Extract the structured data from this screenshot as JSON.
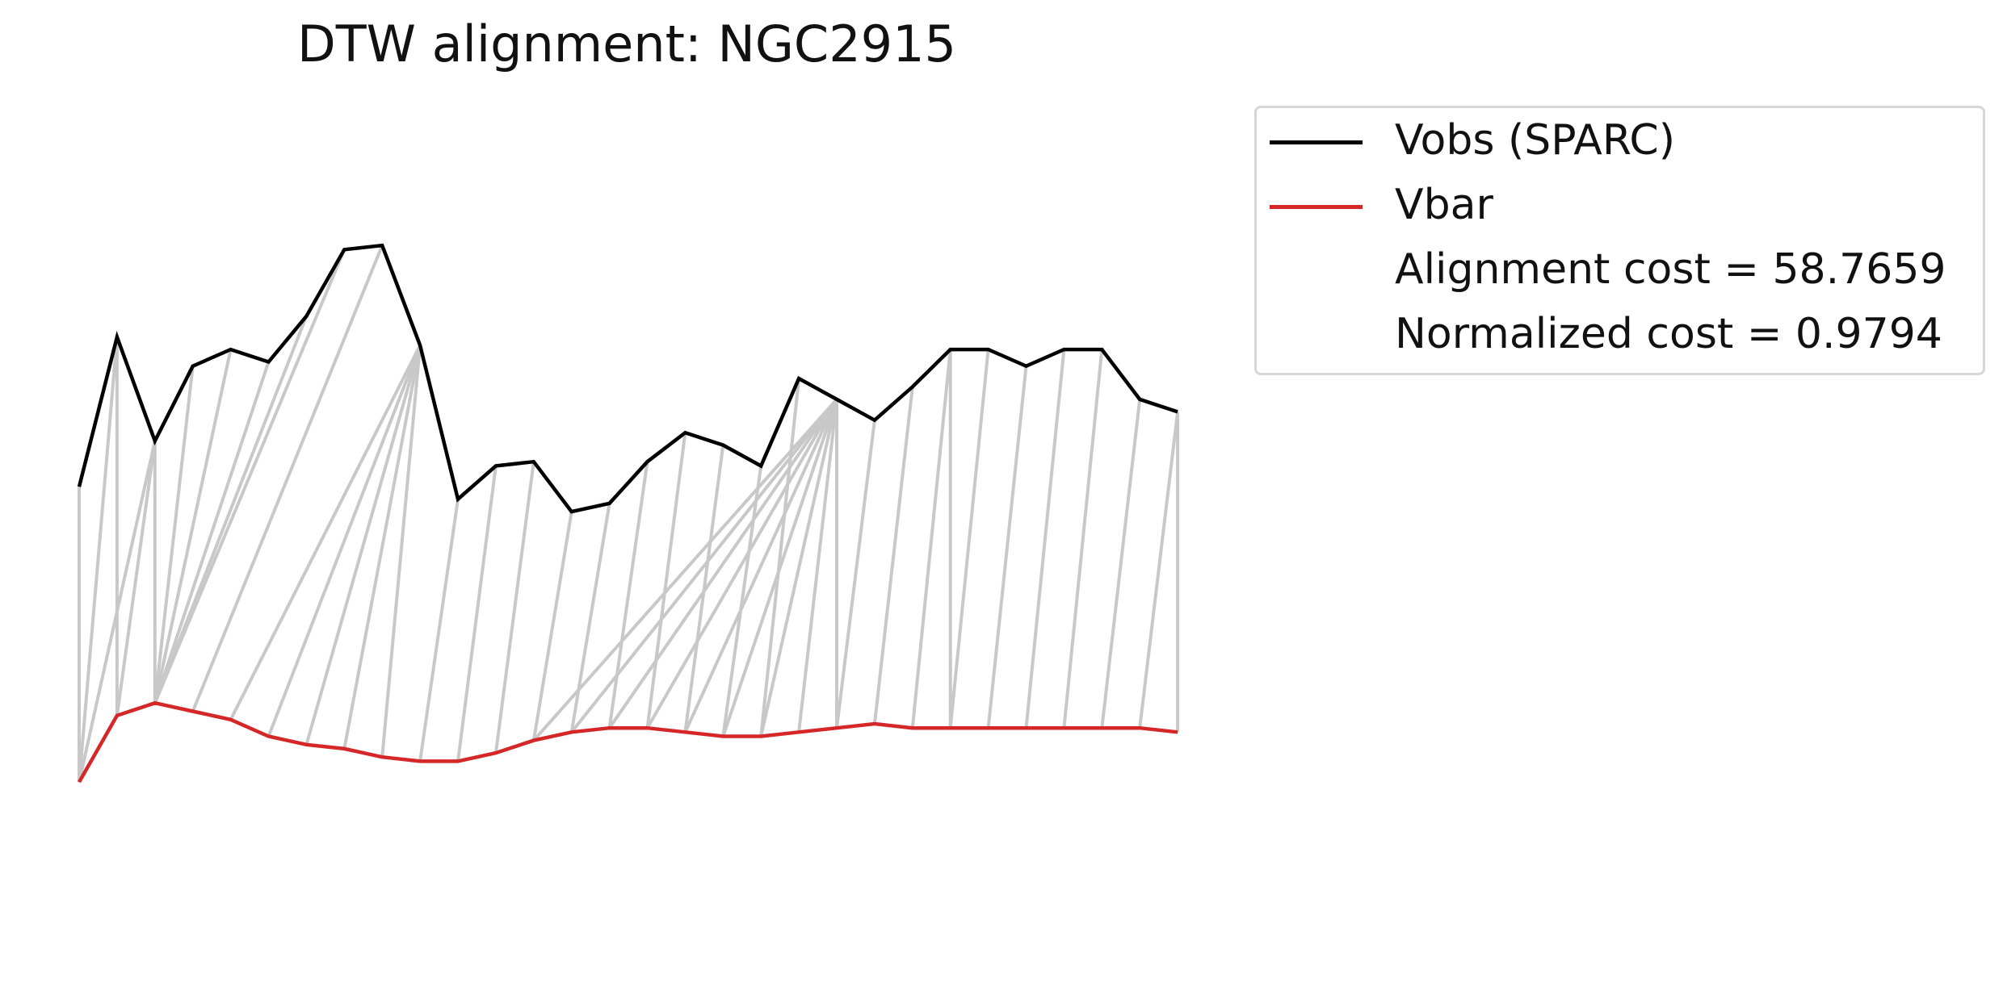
{
  "chart_data": {
    "type": "line",
    "title": "DTW alignment: NGC2915",
    "xlabel": "",
    "ylabel": "",
    "axes_visible": false,
    "grid": false,
    "legend_placement": "outside-top-right",
    "series": [
      {
        "name": "Vobs (SPARC)",
        "color": "#000000",
        "values": [
          46,
          82,
          57,
          75,
          79,
          76,
          87,
          103,
          104,
          80,
          43,
          51,
          52,
          40,
          42,
          52,
          59,
          56,
          51,
          72,
          67,
          62,
          70,
          79,
          79,
          75,
          79,
          79,
          67,
          64
        ]
      },
      {
        "name": "Vbar",
        "color": "#d62728",
        "values": [
          -25,
          -9,
          -6,
          -8,
          -10,
          -14,
          -16,
          -17,
          -19,
          -20,
          -20,
          -18,
          -15,
          -13,
          -12,
          -12,
          -13,
          -14,
          -14,
          -13,
          -12,
          -11,
          -12,
          -12,
          -12,
          -12,
          -12,
          -12,
          -12,
          -13
        ]
      }
    ],
    "alignment": {
      "color": "#c8c8c8",
      "pairs": [
        [
          0,
          0
        ],
        [
          1,
          0
        ],
        [
          1,
          1
        ],
        [
          2,
          0
        ],
        [
          2,
          1
        ],
        [
          2,
          2
        ],
        [
          3,
          2
        ],
        [
          4,
          2
        ],
        [
          5,
          2
        ],
        [
          6,
          2
        ],
        [
          7,
          2
        ],
        [
          8,
          3
        ],
        [
          9,
          4
        ],
        [
          9,
          5
        ],
        [
          9,
          6
        ],
        [
          9,
          7
        ],
        [
          9,
          8
        ],
        [
          10,
          9
        ],
        [
          11,
          10
        ],
        [
          12,
          11
        ],
        [
          13,
          12
        ],
        [
          14,
          13
        ],
        [
          15,
          14
        ],
        [
          16,
          15
        ],
        [
          17,
          16
        ],
        [
          18,
          17
        ],
        [
          19,
          18
        ],
        [
          20,
          19
        ],
        [
          20,
          20
        ],
        [
          21,
          20
        ],
        [
          22,
          21
        ],
        [
          23,
          22
        ],
        [
          24,
          23
        ],
        [
          25,
          24
        ],
        [
          26,
          25
        ],
        [
          27,
          26
        ],
        [
          28,
          27
        ],
        [
          29,
          28
        ],
        [
          29,
          29
        ],
        [
          20,
          12
        ],
        [
          20,
          13
        ],
        [
          20,
          14
        ],
        [
          20,
          15
        ],
        [
          20,
          16
        ],
        [
          20,
          17
        ],
        [
          20,
          18
        ],
        [
          23,
          23
        ]
      ]
    },
    "legend": [
      {
        "label": "Vobs (SPARC)",
        "color": "#000000"
      },
      {
        "label": "Vbar",
        "color": "#d62728"
      },
      {
        "label": "Alignment cost = 58.7659"
      },
      {
        "label": "Normalized cost = 0.9794"
      }
    ]
  }
}
